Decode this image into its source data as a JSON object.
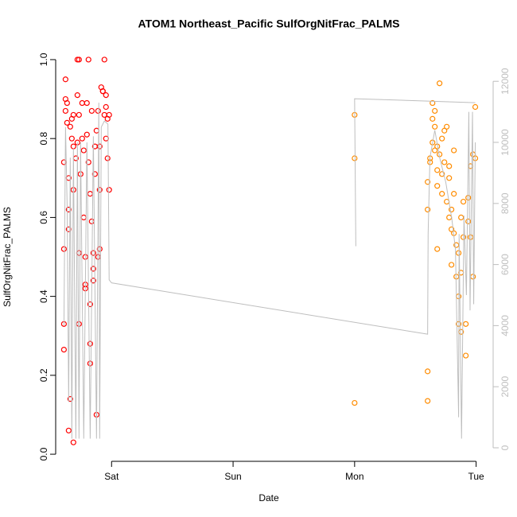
{
  "chart_data": {
    "type": "scatter",
    "title": "ATOM1 Northeast_Pacific SulfOrgNitFrac_PALMS",
    "x_label": "Date",
    "y_label": "SulfOrgNitFrac_PALMS",
    "xlim": [
      -0.46,
      3.14
    ],
    "xticks": [
      {
        "value": 0,
        "label": "Sat"
      },
      {
        "value": 1,
        "label": "Sun"
      },
      {
        "value": 2,
        "label": "Mon"
      },
      {
        "value": 3,
        "label": "Tue"
      }
    ],
    "ylim": [
      -0.018,
      1.01
    ],
    "yticks": [
      {
        "value": 0,
        "label": "0.0"
      },
      0.2,
      0.4,
      0.6,
      0.8,
      {
        "value": 1,
        "label": "1.0"
      }
    ],
    "y2lim": [
      -443,
      12839
    ],
    "y2ticks": [
      0,
      2000,
      4000,
      6000,
      8000,
      10000,
      12000
    ],
    "y2color": "#bebebe",
    "series": [
      {
        "color": "#ff0000",
        "x": [
          -0.392,
          -0.392,
          -0.392,
          -0.392,
          -0.379,
          -0.379,
          -0.379,
          -0.366,
          -0.366,
          -0.353,
          -0.353,
          -0.353,
          -0.353,
          -0.34,
          -0.34,
          -0.327,
          -0.327,
          -0.314,
          -0.314,
          -0.314,
          -0.314,
          -0.294,
          -0.281,
          -0.281,
          -0.281,
          -0.268,
          -0.268,
          -0.268,
          -0.268,
          -0.255,
          -0.242,
          -0.242,
          -0.229,
          -0.229,
          -0.216,
          -0.216,
          -0.216,
          -0.203,
          -0.203,
          -0.19,
          -0.19,
          -0.176,
          -0.176,
          -0.176,
          -0.176,
          -0.163,
          -0.163,
          -0.15,
          -0.15,
          -0.15,
          -0.137,
          -0.137,
          -0.124,
          -0.124,
          -0.111,
          -0.111,
          -0.098,
          -0.098,
          -0.098,
          -0.085,
          -0.072,
          -0.072,
          -0.059,
          -0.059,
          -0.046,
          -0.046,
          -0.046,
          -0.033,
          -0.033,
          -0.02,
          -0.02
        ],
        "values": [
          0.52,
          0.33,
          0.265,
          0.74,
          0.9,
          0.95,
          0.87,
          0.89,
          0.84,
          0.7,
          0.62,
          0.57,
          0.06,
          0.83,
          0.14,
          0.8,
          0.85,
          0.86,
          0.67,
          0.03,
          0.78,
          0.75,
          1.0,
          0.91,
          0.79,
          1.0,
          0.86,
          0.51,
          0.33,
          0.71,
          0.8,
          0.89,
          0.77,
          0.6,
          0.5,
          0.43,
          0.42,
          0.89,
          0.81,
          1.0,
          0.74,
          0.28,
          0.23,
          0.38,
          0.66,
          0.87,
          0.59,
          0.47,
          0.44,
          0.51,
          0.71,
          0.78,
          0.82,
          0.1,
          0.87,
          0.5,
          0.67,
          0.52,
          0.78,
          0.93,
          0.92,
          0.92,
          1.0,
          0.86,
          0.91,
          0.88,
          0.8,
          0.75,
          0.85,
          0.67,
          0.86
        ]
      },
      {
        "color": "#ff8c00",
        "x": [
          2.0,
          2.0,
          2.0,
          2.601,
          2.601,
          2.601,
          2.601,
          2.621,
          2.621,
          2.641,
          2.641,
          2.641,
          2.66,
          2.66,
          2.66,
          2.68,
          2.68,
          2.68,
          2.68,
          2.699,
          2.699,
          2.719,
          2.719,
          2.719,
          2.739,
          2.739,
          2.758,
          2.758,
          2.778,
          2.778,
          2.778,
          2.797,
          2.797,
          2.797,
          2.817,
          2.817,
          2.817,
          2.837,
          2.837,
          2.856,
          2.856,
          2.856,
          2.876,
          2.876,
          2.876,
          2.895,
          2.895,
          2.915,
          2.915,
          2.935,
          2.935,
          2.954,
          2.954,
          2.974,
          2.974,
          2.993,
          2.993
        ],
        "values": [
          0.86,
          0.75,
          0.13,
          0.21,
          0.135,
          0.62,
          0.69,
          0.75,
          0.74,
          0.85,
          0.89,
          0.79,
          0.83,
          0.87,
          0.77,
          0.72,
          0.68,
          0.52,
          0.78,
          0.94,
          0.76,
          0.8,
          0.71,
          0.66,
          0.82,
          0.74,
          0.83,
          0.64,
          0.73,
          0.7,
          0.6,
          0.57,
          0.62,
          0.48,
          0.77,
          0.56,
          0.66,
          0.53,
          0.45,
          0.51,
          0.4,
          0.33,
          0.31,
          0.46,
          0.6,
          0.64,
          0.55,
          0.25,
          0.33,
          0.59,
          0.65,
          0.55,
          0.73,
          0.76,
          0.45,
          0.88,
          0.75
        ]
      },
      {
        "type": "line",
        "axis": "y2",
        "color": "#bebebe",
        "x": [
          -0.392,
          -0.379,
          -0.366,
          -0.353,
          -0.34,
          -0.327,
          -0.314,
          -0.294,
          -0.281,
          -0.268,
          -0.255,
          -0.229,
          -0.203,
          -0.176,
          -0.15,
          -0.124,
          -0.105,
          -0.098,
          -0.085,
          -0.059,
          -0.03,
          -0.02,
          0,
          2.601,
          2.605,
          2.62,
          2.66,
          2.7,
          2.75,
          2.8,
          2.83,
          2.856,
          2.86,
          2.88,
          2.9,
          2.92,
          2.94,
          2.95,
          2.97,
          2.98,
          2.993,
          2.993,
          2.01,
          2.0,
          2.993
        ],
        "values": [
          4000,
          10500,
          8000,
          1500,
          9500,
          300,
          9800,
          300,
          10000,
          300,
          10000,
          300,
          10000,
          300,
          10200,
          300,
          11300,
          300,
          10500,
          10700,
          10600,
          5500,
          5400,
          3720,
          7000,
          9500,
          10400,
          9500,
          8700,
          7500,
          6500,
          1000,
          7000,
          300,
          7600,
          5000,
          11000,
          4500,
          11000,
          4700,
          10000,
          null,
          6600,
          11430,
          11300
        ]
      }
    ]
  }
}
